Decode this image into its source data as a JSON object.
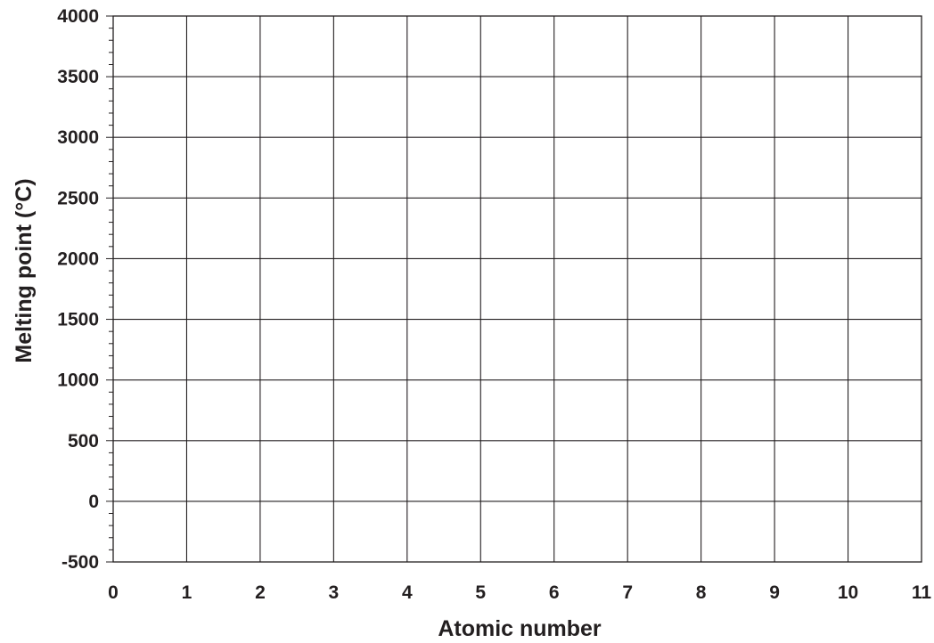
{
  "chart_data": {
    "type": "scatter",
    "title": "",
    "xlabel": "Atomic number",
    "ylabel": "Melting point (°C)",
    "xlim": [
      0,
      11
    ],
    "ylim": [
      -500,
      4000
    ],
    "x_ticks": [
      "0",
      "1",
      "2",
      "3",
      "4",
      "5",
      "6",
      "7",
      "8",
      "9",
      "10",
      "11"
    ],
    "y_ticks": [
      "-500",
      "0",
      "500",
      "1000",
      "1500",
      "2000",
      "2500",
      "3000",
      "3500",
      "4000"
    ],
    "y_minor_step": 100,
    "grid": true,
    "series": []
  }
}
